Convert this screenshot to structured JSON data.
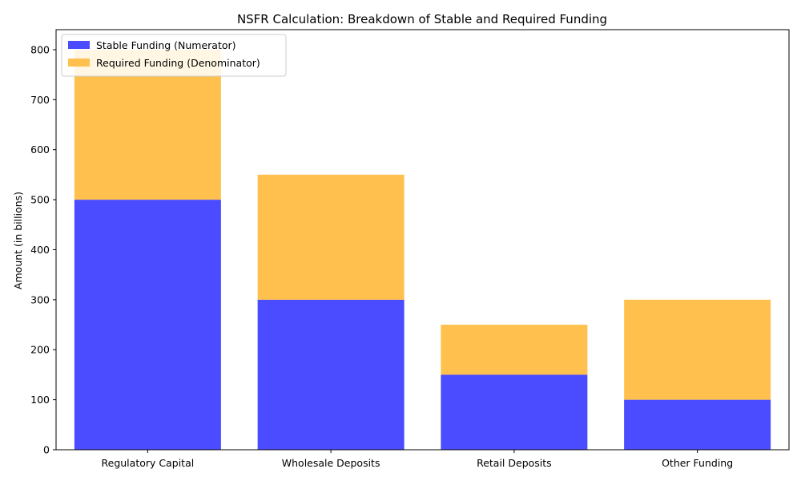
{
  "chart_data": {
    "type": "bar",
    "stacked": true,
    "title": "NSFR Calculation: Breakdown of Stable and Required Funding",
    "xlabel": "",
    "ylabel": "Amount (in billions)",
    "ylim": [
      0,
      840
    ],
    "yticks": [
      0,
      100,
      200,
      300,
      400,
      500,
      600,
      700,
      800
    ],
    "categories": [
      "Regulatory Capital",
      "Wholesale Deposits",
      "Retail Deposits",
      "Other Funding"
    ],
    "series": [
      {
        "name": "Stable Funding (Numerator)",
        "color": "#4b4bff",
        "values": [
          500,
          300,
          150,
          100
        ]
      },
      {
        "name": "Required Funding (Denominator)",
        "color": "#ffc04d",
        "values": [
          300,
          250,
          100,
          200
        ]
      }
    ],
    "legend": "top-left",
    "grid": false
  }
}
